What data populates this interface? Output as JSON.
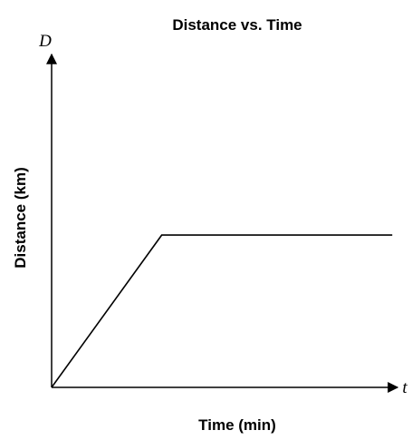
{
  "chart_data": {
    "type": "line",
    "title": "Distance vs. Time",
    "x_label": "Time (min)",
    "y_label": "Distance (km)",
    "x_axis_symbol": "t",
    "y_axis_symbol": "D",
    "x": [
      0,
      3.2,
      9.9
    ],
    "values": [
      0,
      4.6,
      4.6
    ],
    "color": "#000000",
    "xlim": [
      0,
      10
    ],
    "ylim": [
      0,
      10
    ],
    "grid": false
  }
}
